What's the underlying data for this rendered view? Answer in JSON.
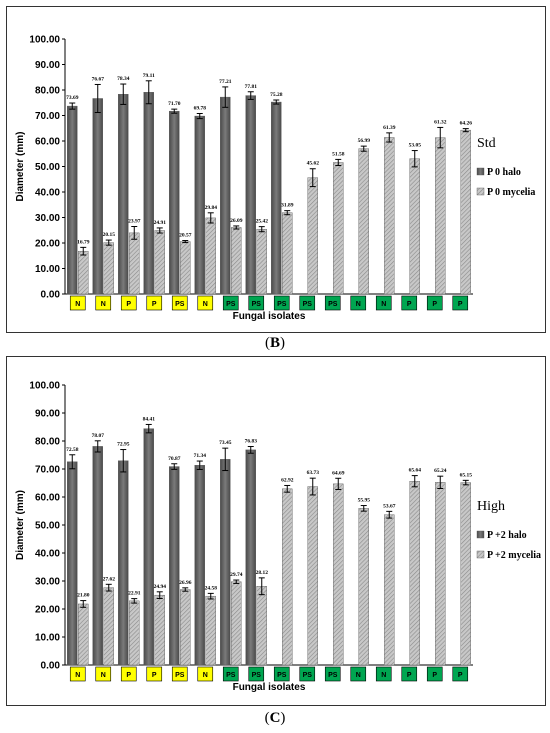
{
  "figure": {
    "caption_b_open": "(",
    "caption_b_letter": "B",
    "caption_b_close": ")",
    "caption_c_open": "(",
    "caption_c_letter": "C",
    "caption_c_close": ")"
  },
  "chart_data": [
    {
      "type": "bar",
      "panel": "B",
      "xlabel": "Fungal isolates",
      "ylabel": "Diameter (mm)",
      "ylim": [
        0,
        100
      ],
      "yticks": [
        "0.00",
        "10.00",
        "20.00",
        "30.00",
        "40.00",
        "50.00",
        "60.00",
        "70.00",
        "80.00",
        "90.00",
        "100.00"
      ],
      "grid": false,
      "legend_position": "right",
      "condition_label": "Std",
      "categories": [
        "N",
        "N",
        "P",
        "P",
        "PS",
        "N",
        "PS",
        "PS",
        "PS",
        "PS",
        "PS",
        "N",
        "N",
        "P",
        "P",
        "P"
      ],
      "category_colors": [
        "#ffff00",
        "#ffff00",
        "#ffff00",
        "#ffff00",
        "#ffff00",
        "#ffff00",
        "#00a651",
        "#00a651",
        "#00a651",
        "#00a651",
        "#00a651",
        "#00a651",
        "#00a651",
        "#00a651",
        "#00a651",
        "#00a651"
      ],
      "series": [
        {
          "name": "P 0 halo",
          "color": "#6e6e6e",
          "values": [
            73.69,
            76.67,
            78.34,
            79.11,
            71.7,
            69.78,
            77.21,
            77.81,
            75.28,
            null,
            null,
            null,
            null,
            null,
            null,
            null
          ],
          "errors": [
            1.2,
            5.5,
            4.0,
            4.5,
            0.8,
            1.0,
            4.0,
            1.5,
            0.8,
            null,
            null,
            null,
            null,
            null,
            null,
            null
          ],
          "labels": [
            "73.69",
            "76.67",
            "78.34",
            "79.11",
            "71.70",
            "69.78",
            "77.21",
            "77.81",
            "75.28",
            "",
            "",
            "",
            "",
            "",
            "",
            ""
          ]
        },
        {
          "name": "P 0 mycelia",
          "color": "#b0b0b0",
          "values": [
            16.79,
            20.15,
            23.97,
            24.91,
            20.57,
            29.84,
            26.09,
            25.42,
            31.89,
            45.62,
            51.58,
            56.99,
            61.39,
            53.05,
            61.32,
            64.26
          ],
          "errors": [
            1.5,
            1.0,
            2.5,
            1.0,
            0.4,
            2.0,
            0.6,
            1.0,
            0.8,
            3.5,
            1.2,
            1.0,
            1.8,
            3.2,
            4.0,
            0.6
          ],
          "labels": [
            "16.79",
            "20.15",
            "23.97",
            "24.91",
            "20.57",
            "29.84",
            "26.09",
            "25.42",
            "31.89",
            "45.62",
            "51.58",
            "56.99",
            "61.39",
            "53.05",
            "61.32",
            "64.26"
          ]
        }
      ]
    },
    {
      "type": "bar",
      "panel": "C",
      "xlabel": "Fungal isolates",
      "ylabel": "Diameter (mm)",
      "ylim": [
        0,
        100
      ],
      "yticks": [
        "0.00",
        "10.00",
        "20.00",
        "30.00",
        "40.00",
        "50.00",
        "60.00",
        "70.00",
        "80.00",
        "90.00",
        "100.00"
      ],
      "grid": false,
      "legend_position": "right",
      "condition_label": "High",
      "categories": [
        "N",
        "N",
        "P",
        "P",
        "PS",
        "N",
        "PS",
        "PS",
        "PS",
        "PS",
        "PS",
        "N",
        "N",
        "P",
        "P",
        "P"
      ],
      "category_colors": [
        "#ffff00",
        "#ffff00",
        "#ffff00",
        "#ffff00",
        "#ffff00",
        "#ffff00",
        "#00a651",
        "#00a651",
        "#00a651",
        "#00a651",
        "#00a651",
        "#00a651",
        "#00a651",
        "#00a651",
        "#00a651",
        "#00a651"
      ],
      "series": [
        {
          "name": "P +2 halo",
          "color": "#6e6e6e",
          "values": [
            72.58,
            78.07,
            72.95,
            84.41,
            70.87,
            71.34,
            73.45,
            76.83,
            null,
            null,
            null,
            null,
            null,
            null,
            null,
            null
          ],
          "errors": [
            2.5,
            2.0,
            4.0,
            1.5,
            1.0,
            1.5,
            4.0,
            1.2,
            null,
            null,
            null,
            null,
            null,
            null,
            null,
            null
          ],
          "labels": [
            "72.58",
            "78.07",
            "72.95",
            "84.41",
            "70.87",
            "71.34",
            "73.45",
            "76.83",
            "",
            "",
            "",
            "",
            "",
            "",
            "",
            ""
          ]
        },
        {
          "name": "P +2 mycelia",
          "color": "#b0b0b0",
          "values": [
            21.8,
            27.62,
            22.91,
            24.94,
            26.96,
            24.58,
            29.74,
            28.12,
            62.92,
            63.73,
            64.69,
            55.95,
            53.67,
            65.64,
            65.24,
            65.15
          ],
          "errors": [
            1.2,
            1.2,
            0.8,
            1.2,
            0.6,
            1.0,
            0.6,
            3.0,
            1.2,
            3.0,
            2.0,
            1.0,
            1.2,
            2.0,
            2.2,
            0.8
          ],
          "labels": [
            "21.80",
            "27.62",
            "22.91",
            "24.94",
            "26.96",
            "24.58",
            "29.74",
            "28.12",
            "62.92",
            "63.73",
            "64.69",
            "55.95",
            "53.67",
            "65.64",
            "65.24",
            "65.15"
          ]
        }
      ]
    }
  ]
}
